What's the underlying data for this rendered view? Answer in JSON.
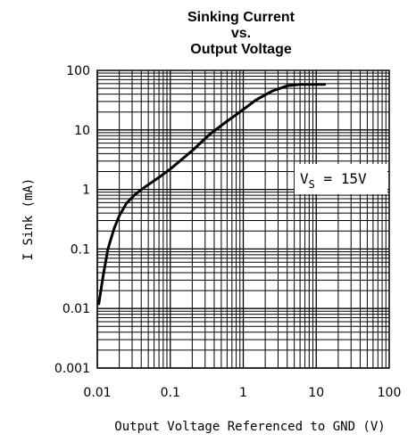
{
  "chart_data": {
    "type": "line",
    "title": [
      "Sinking Current",
      "vs.",
      "Output Voltage"
    ],
    "xlabel": "Output Voltage Referenced to GND (V)",
    "ylabel": "I Sink (mA)",
    "x_scale": "log",
    "y_scale": "log",
    "xlim": [
      0.01,
      100
    ],
    "ylim": [
      0.001,
      100
    ],
    "x_ticks": [
      "0.01",
      "0.1",
      "1",
      "10",
      "100"
    ],
    "y_ticks": [
      "100",
      "10",
      "1",
      "0.1",
      "0.01",
      "0.001"
    ],
    "grid": true,
    "annotation": {
      "main": "V",
      "sub": "S",
      "rest": " = 15V"
    },
    "series": [
      {
        "x": [
          0.0105,
          0.012,
          0.014,
          0.017,
          0.02,
          0.025,
          0.032,
          0.045,
          0.07,
          0.1,
          0.2,
          0.35,
          0.6,
          1.0,
          1.5,
          2.5,
          4.0,
          6.0,
          10.0,
          13.0
        ],
        "y": [
          0.012,
          0.035,
          0.1,
          0.22,
          0.36,
          0.58,
          0.8,
          1.1,
          1.6,
          2.2,
          4.5,
          8.5,
          14.0,
          22.0,
          32.0,
          45.0,
          55.0,
          58.0,
          58.0,
          58.0
        ]
      }
    ]
  }
}
